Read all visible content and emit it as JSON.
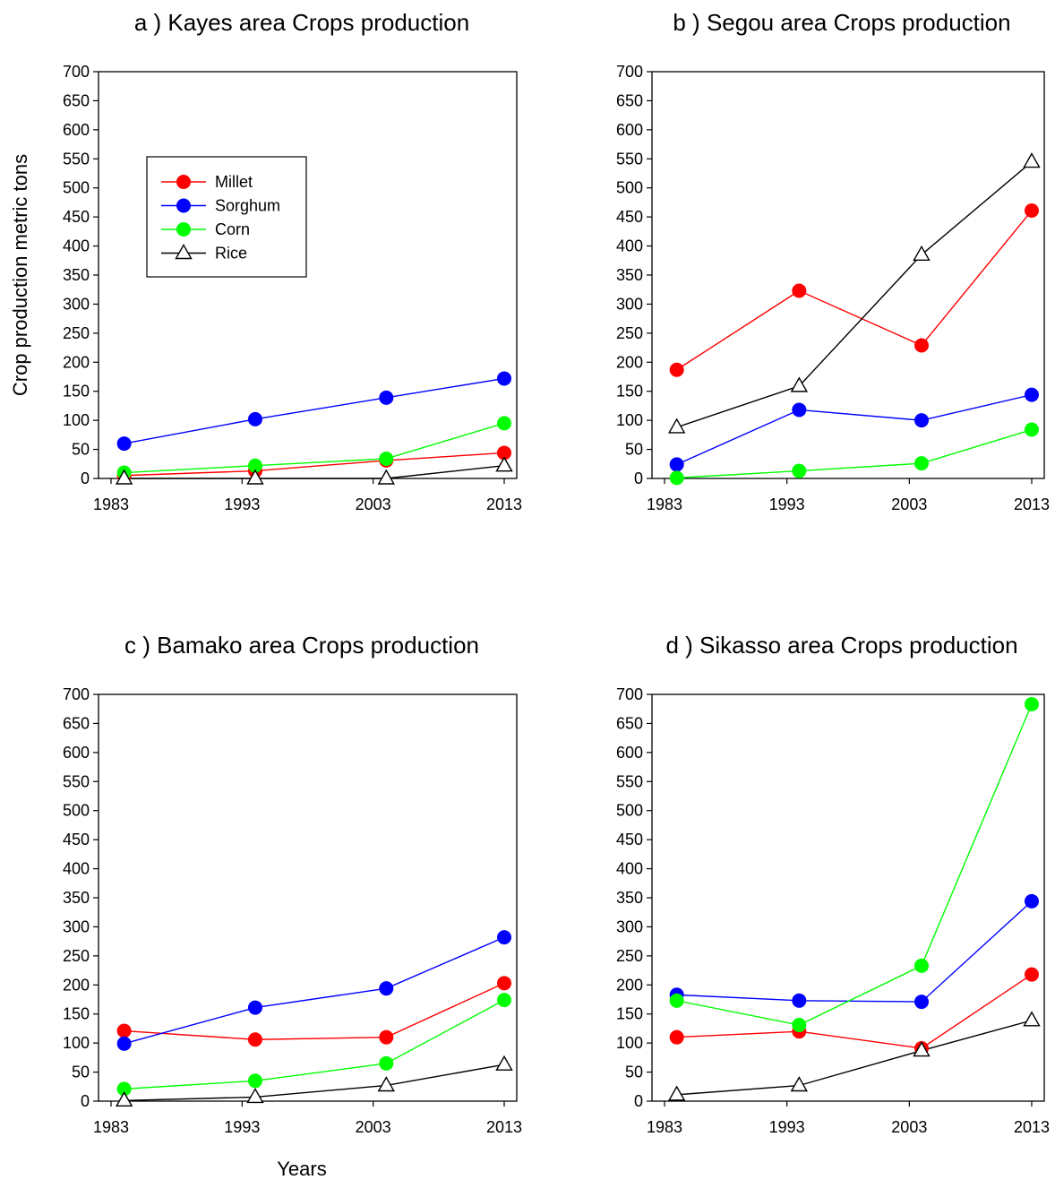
{
  "figure": {
    "ylabel": "Crop production metric tons",
    "xlabel": "Years"
  },
  "legend": {
    "entries": [
      {
        "name": "Millet",
        "color": "#ff0000",
        "marker": "circle"
      },
      {
        "name": "Sorghum",
        "color": "#0000ff",
        "marker": "circle"
      },
      {
        "name": "Corn",
        "color": "#00ff00",
        "marker": "circle"
      },
      {
        "name": "Rice",
        "color": "#000000",
        "marker": "open-triangle"
      }
    ]
  },
  "chart_data": [
    {
      "type": "line",
      "title": "a ) Kayes area Crops production",
      "x": [
        1984,
        1994,
        2004,
        2013
      ],
      "xticks": [
        1983,
        1993,
        2003,
        2013
      ],
      "xlim": [
        1983,
        2013
      ],
      "ylim": [
        0,
        700
      ],
      "yticks": [
        0,
        50,
        100,
        150,
        200,
        250,
        300,
        350,
        400,
        450,
        500,
        550,
        600,
        650,
        700
      ],
      "legend_position": "upper-left",
      "series": [
        {
          "name": "Millet",
          "values": [
            5,
            13,
            31,
            44
          ]
        },
        {
          "name": "Sorghum",
          "values": [
            60,
            102,
            139,
            172
          ]
        },
        {
          "name": "Corn",
          "values": [
            10,
            22,
            34,
            95
          ]
        },
        {
          "name": "Rice",
          "values": [
            0,
            0,
            0,
            22
          ]
        }
      ]
    },
    {
      "type": "line",
      "title": "b ) Segou area Crops production",
      "x": [
        1984,
        1994,
        2004,
        2013
      ],
      "xticks": [
        1983,
        1993,
        2003,
        2013
      ],
      "xlim": [
        1983,
        2013
      ],
      "ylim": [
        0,
        700
      ],
      "yticks": [
        0,
        50,
        100,
        150,
        200,
        250,
        300,
        350,
        400,
        450,
        500,
        550,
        600,
        650,
        700
      ],
      "series": [
        {
          "name": "Millet",
          "values": [
            187,
            323,
            229,
            461
          ]
        },
        {
          "name": "Sorghum",
          "values": [
            24,
            118,
            100,
            144
          ]
        },
        {
          "name": "Corn",
          "values": [
            1,
            13,
            26,
            84
          ]
        },
        {
          "name": "Rice",
          "values": [
            88,
            159,
            385,
            545
          ]
        }
      ]
    },
    {
      "type": "line",
      "title": "c ) Bamako area Crops production",
      "x": [
        1984,
        1994,
        2004,
        2013
      ],
      "xticks": [
        1983,
        1993,
        2003,
        2013
      ],
      "xlim": [
        1983,
        2013
      ],
      "ylim": [
        0,
        700
      ],
      "yticks": [
        0,
        50,
        100,
        150,
        200,
        250,
        300,
        350,
        400,
        450,
        500,
        550,
        600,
        650,
        700
      ],
      "series": [
        {
          "name": "Millet",
          "values": [
            121,
            106,
            110,
            203
          ]
        },
        {
          "name": "Sorghum",
          "values": [
            99,
            161,
            194,
            282
          ]
        },
        {
          "name": "Corn",
          "values": [
            21,
            35,
            65,
            174
          ]
        },
        {
          "name": "Rice",
          "values": [
            1,
            7,
            27,
            63
          ]
        }
      ]
    },
    {
      "type": "line",
      "title": "d ) Sikasso area Crops production",
      "x": [
        1984,
        1994,
        2004,
        2013
      ],
      "xticks": [
        1983,
        1993,
        2003,
        2013
      ],
      "xlim": [
        1983,
        2013
      ],
      "ylim": [
        0,
        700
      ],
      "yticks": [
        0,
        50,
        100,
        150,
        200,
        250,
        300,
        350,
        400,
        450,
        500,
        550,
        600,
        650,
        700
      ],
      "series": [
        {
          "name": "Millet",
          "values": [
            110,
            120,
            91,
            218
          ]
        },
        {
          "name": "Sorghum",
          "values": [
            183,
            173,
            171,
            344
          ]
        },
        {
          "name": "Corn",
          "values": [
            173,
            131,
            233,
            683
          ]
        },
        {
          "name": "Rice",
          "values": [
            11,
            27,
            87,
            139
          ]
        }
      ]
    }
  ]
}
